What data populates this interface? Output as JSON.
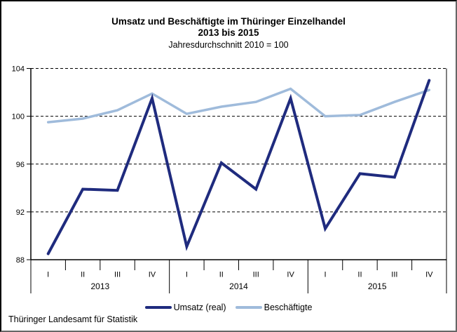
{
  "title": {
    "line1": "Umsatz und Beschäftigte im Thüringer Einzelhandel",
    "line2": "2013 bis 2015",
    "subtitle": "Jahresdurchschnitt 2010 = 100"
  },
  "footer": "Thüringer Landesamt für Statistik",
  "colors": {
    "umsatz": "#1F2B7E",
    "beschaeftigte": "#9FBBDB",
    "axis": "#000000"
  },
  "legend": [
    {
      "label": "Umsatz (real)",
      "color": "#1F2B7E"
    },
    {
      "label": "Beschäftigte",
      "color": "#9FBBDB"
    }
  ],
  "chart_data": {
    "type": "line",
    "title": "Umsatz und Beschäftigte im Thüringer Einzelhandel 2013 bis 2015",
    "subtitle": "Jahresdurchschnitt 2010 = 100",
    "years": [
      "2013",
      "2014",
      "2015"
    ],
    "quarters": [
      "I",
      "II",
      "III",
      "IV"
    ],
    "categories": [
      "I",
      "II",
      "III",
      "IV",
      "I",
      "II",
      "III",
      "IV",
      "I",
      "II",
      "III",
      "IV"
    ],
    "series": [
      {
        "name": "Umsatz (real)",
        "color": "#1F2B7E",
        "width": 4,
        "values": [
          88.5,
          93.9,
          93.8,
          101.5,
          89.1,
          96.1,
          93.9,
          101.5,
          90.6,
          95.2,
          94.9,
          103.0
        ]
      },
      {
        "name": "Beschäftigte",
        "color": "#9FBBDB",
        "width": 3.5,
        "values": [
          99.5,
          99.8,
          100.5,
          101.9,
          100.2,
          100.8,
          101.2,
          102.3,
          100.0,
          100.1,
          101.2,
          102.2
        ]
      }
    ],
    "ylim": [
      88,
      104
    ],
    "yticks": [
      88,
      92,
      96,
      100,
      104
    ],
    "grid": "horizontal-dashed",
    "legend_position": "bottom"
  }
}
